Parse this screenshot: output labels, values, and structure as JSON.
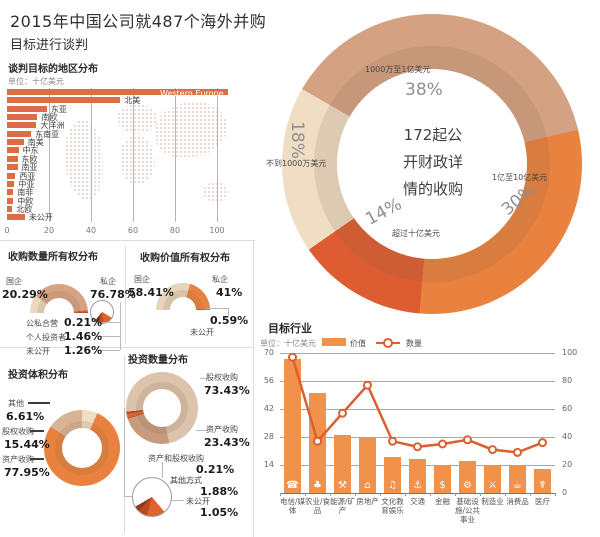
{
  "page": {
    "headline_line1": "2015年中国公司就487个海外并购",
    "headline_line2": "目标进行谈判"
  },
  "colors": {
    "region_bar": "#dc6e44",
    "industry_bar": "#f0924c",
    "line": "#d9602f",
    "donut_tan": "#d4a183",
    "donut_orange": "#e8823e",
    "donut_red": "#dd5c32",
    "donut_cream": "#efddc4"
  },
  "chart_data": [
    {
      "id": "region",
      "type": "bar",
      "title": "谈判目标的地区分布",
      "unit": "单位：十亿美元",
      "orientation": "horizontal",
      "xlim": [
        0,
        100
      ],
      "x_ticks": [
        0,
        20,
        40,
        60,
        80,
        100
      ],
      "bar_color": "#dc6e44",
      "categories": [
        "Western Europe",
        "北美",
        "东亚",
        "南欧",
        "大洋洲",
        "东南亚",
        "南美",
        "中东",
        "东欧",
        "南亚",
        "西亚",
        "中亚",
        "南非",
        "中欧",
        "北欧",
        "未公开"
      ],
      "values": [
        105,
        54,
        19,
        14.5,
        14,
        11.5,
        8,
        5.5,
        5,
        5,
        4,
        3.5,
        3,
        3,
        2.5,
        8.5
      ]
    },
    {
      "id": "deal-size",
      "type": "donut",
      "center_lines": [
        "172起公",
        "开财政详",
        "情的收购"
      ],
      "start_angle": -60,
      "segments": [
        {
          "label": "1000万至1亿美元",
          "pct": "38%",
          "value": 38,
          "color": "#d4a183"
        },
        {
          "label": "1亿至10亿美元",
          "pct": "30%",
          "value": 30,
          "color": "#e8823e"
        },
        {
          "label": "超过十亿美元",
          "pct": "14%",
          "value": 14,
          "color": "#dd5c32"
        },
        {
          "label": "不到1000万美元",
          "pct": "18%",
          "value": 18,
          "color": "#efddc4"
        }
      ]
    },
    {
      "id": "ownership-count",
      "type": "half-donut",
      "title": "收购数量所有权分布",
      "segments": [
        {
          "label": "国企",
          "pct": "20.29%",
          "value": 20.29,
          "color": "#ecd9bf"
        },
        {
          "label": "私企",
          "pct": "76.78%",
          "value": 76.78,
          "color": "#d6a384"
        },
        {
          "label": "公私合营",
          "pct": "0.21%",
          "value": 0.21,
          "color": "#8f3a1a"
        },
        {
          "label": "个人投资者",
          "pct": "1.46%",
          "value": 1.46,
          "color": "#e0622f"
        },
        {
          "label": "未公开",
          "pct": "1.26%",
          "value": 1.26,
          "color": "#c24d22"
        }
      ]
    },
    {
      "id": "ownership-value",
      "type": "half-donut",
      "title": "收购价值所有权分布",
      "segments": [
        {
          "label": "国企",
          "pct": "58.41%",
          "value": 58.41,
          "color": "#e7d4ba"
        },
        {
          "label": "私企",
          "pct": "41%",
          "value": 41,
          "color": "#e8823e"
        },
        {
          "label": "未公开",
          "pct": "0.59%",
          "value": 0.59,
          "color": "#c24d22"
        }
      ]
    },
    {
      "id": "investment-volume",
      "type": "donut",
      "title": "投资体积分布",
      "start_angle": 0,
      "segments": [
        {
          "label": "其他",
          "pct": "6.61%",
          "value": 6.61,
          "color": "#efddc4"
        },
        {
          "label": "资产收购",
          "pct": "77.95%",
          "value": 77.95,
          "color": "#e8823e"
        },
        {
          "label": "股权收购",
          "pct": "15.44%",
          "value": 15.44,
          "color": "#d9b494"
        }
      ]
    },
    {
      "id": "investment-count",
      "type": "donut",
      "title": "投资数量分布",
      "start_angle": 264,
      "segments": [
        {
          "label": "股权收购",
          "pct": "73.43%",
          "value": 73.43,
          "color": "#dcc3ab"
        },
        {
          "label": "资产收购",
          "pct": "23.43%",
          "value": 23.43,
          "color": "#c89b7e"
        },
        {
          "label": "资产和股权收购",
          "pct": "0.21%",
          "value": 0.21,
          "color": "#8f3a1a"
        },
        {
          "label": "其他方式",
          "pct": "1.88%",
          "value": 1.88,
          "color": "#e0622f"
        },
        {
          "label": "未公开",
          "pct": "1.05%",
          "value": 1.05,
          "color": "#b94a22"
        }
      ]
    },
    {
      "id": "target-industry",
      "type": "bar+line",
      "title": "目标行业",
      "unit": "单位：十亿美元",
      "legend": [
        {
          "label": "价值",
          "marker": "bar"
        },
        {
          "label": "数量",
          "marker": "line"
        }
      ],
      "categories": [
        "电信/媒体",
        "农业/食品",
        "能源/矿产",
        "房地产",
        "文化教育娱乐",
        "交通",
        "金融",
        "基础设施/公共事业",
        "制造业",
        "消费品",
        "医疗"
      ],
      "icons": [
        {
          "name": "phone-icon",
          "glyph": "☎"
        },
        {
          "name": "tractor-icon",
          "glyph": "♣"
        },
        {
          "name": "mining-icon",
          "glyph": "⚒"
        },
        {
          "name": "buildings-icon",
          "glyph": "⌂"
        },
        {
          "name": "entertainment-icon",
          "glyph": "♫"
        },
        {
          "name": "truck-icon",
          "glyph": "⚓"
        },
        {
          "name": "money-bag-icon",
          "glyph": "$"
        },
        {
          "name": "crane-icon",
          "glyph": "⚙"
        },
        {
          "name": "tools-icon",
          "glyph": "⚔"
        },
        {
          "name": "consumer-goods-icon",
          "glyph": "☕"
        },
        {
          "name": "medical-icon",
          "glyph": "☤"
        }
      ],
      "series": [
        {
          "name": "价值",
          "type": "bar",
          "color": "#f0924c",
          "values": [
            67,
            50,
            29,
            28,
            18,
            17,
            14,
            16,
            14,
            14,
            12
          ]
        },
        {
          "name": "数量",
          "type": "line",
          "color": "#d9602f",
          "values": [
            97,
            37,
            57,
            77,
            37,
            33,
            35,
            38,
            31,
            29,
            36
          ]
        }
      ],
      "left_axis": {
        "ticks": [
          70,
          56,
          42,
          28,
          14
        ],
        "max": 70
      },
      "right_axis": {
        "ticks": [
          100,
          80,
          60,
          40,
          20,
          0
        ],
        "max": 100
      }
    }
  ]
}
